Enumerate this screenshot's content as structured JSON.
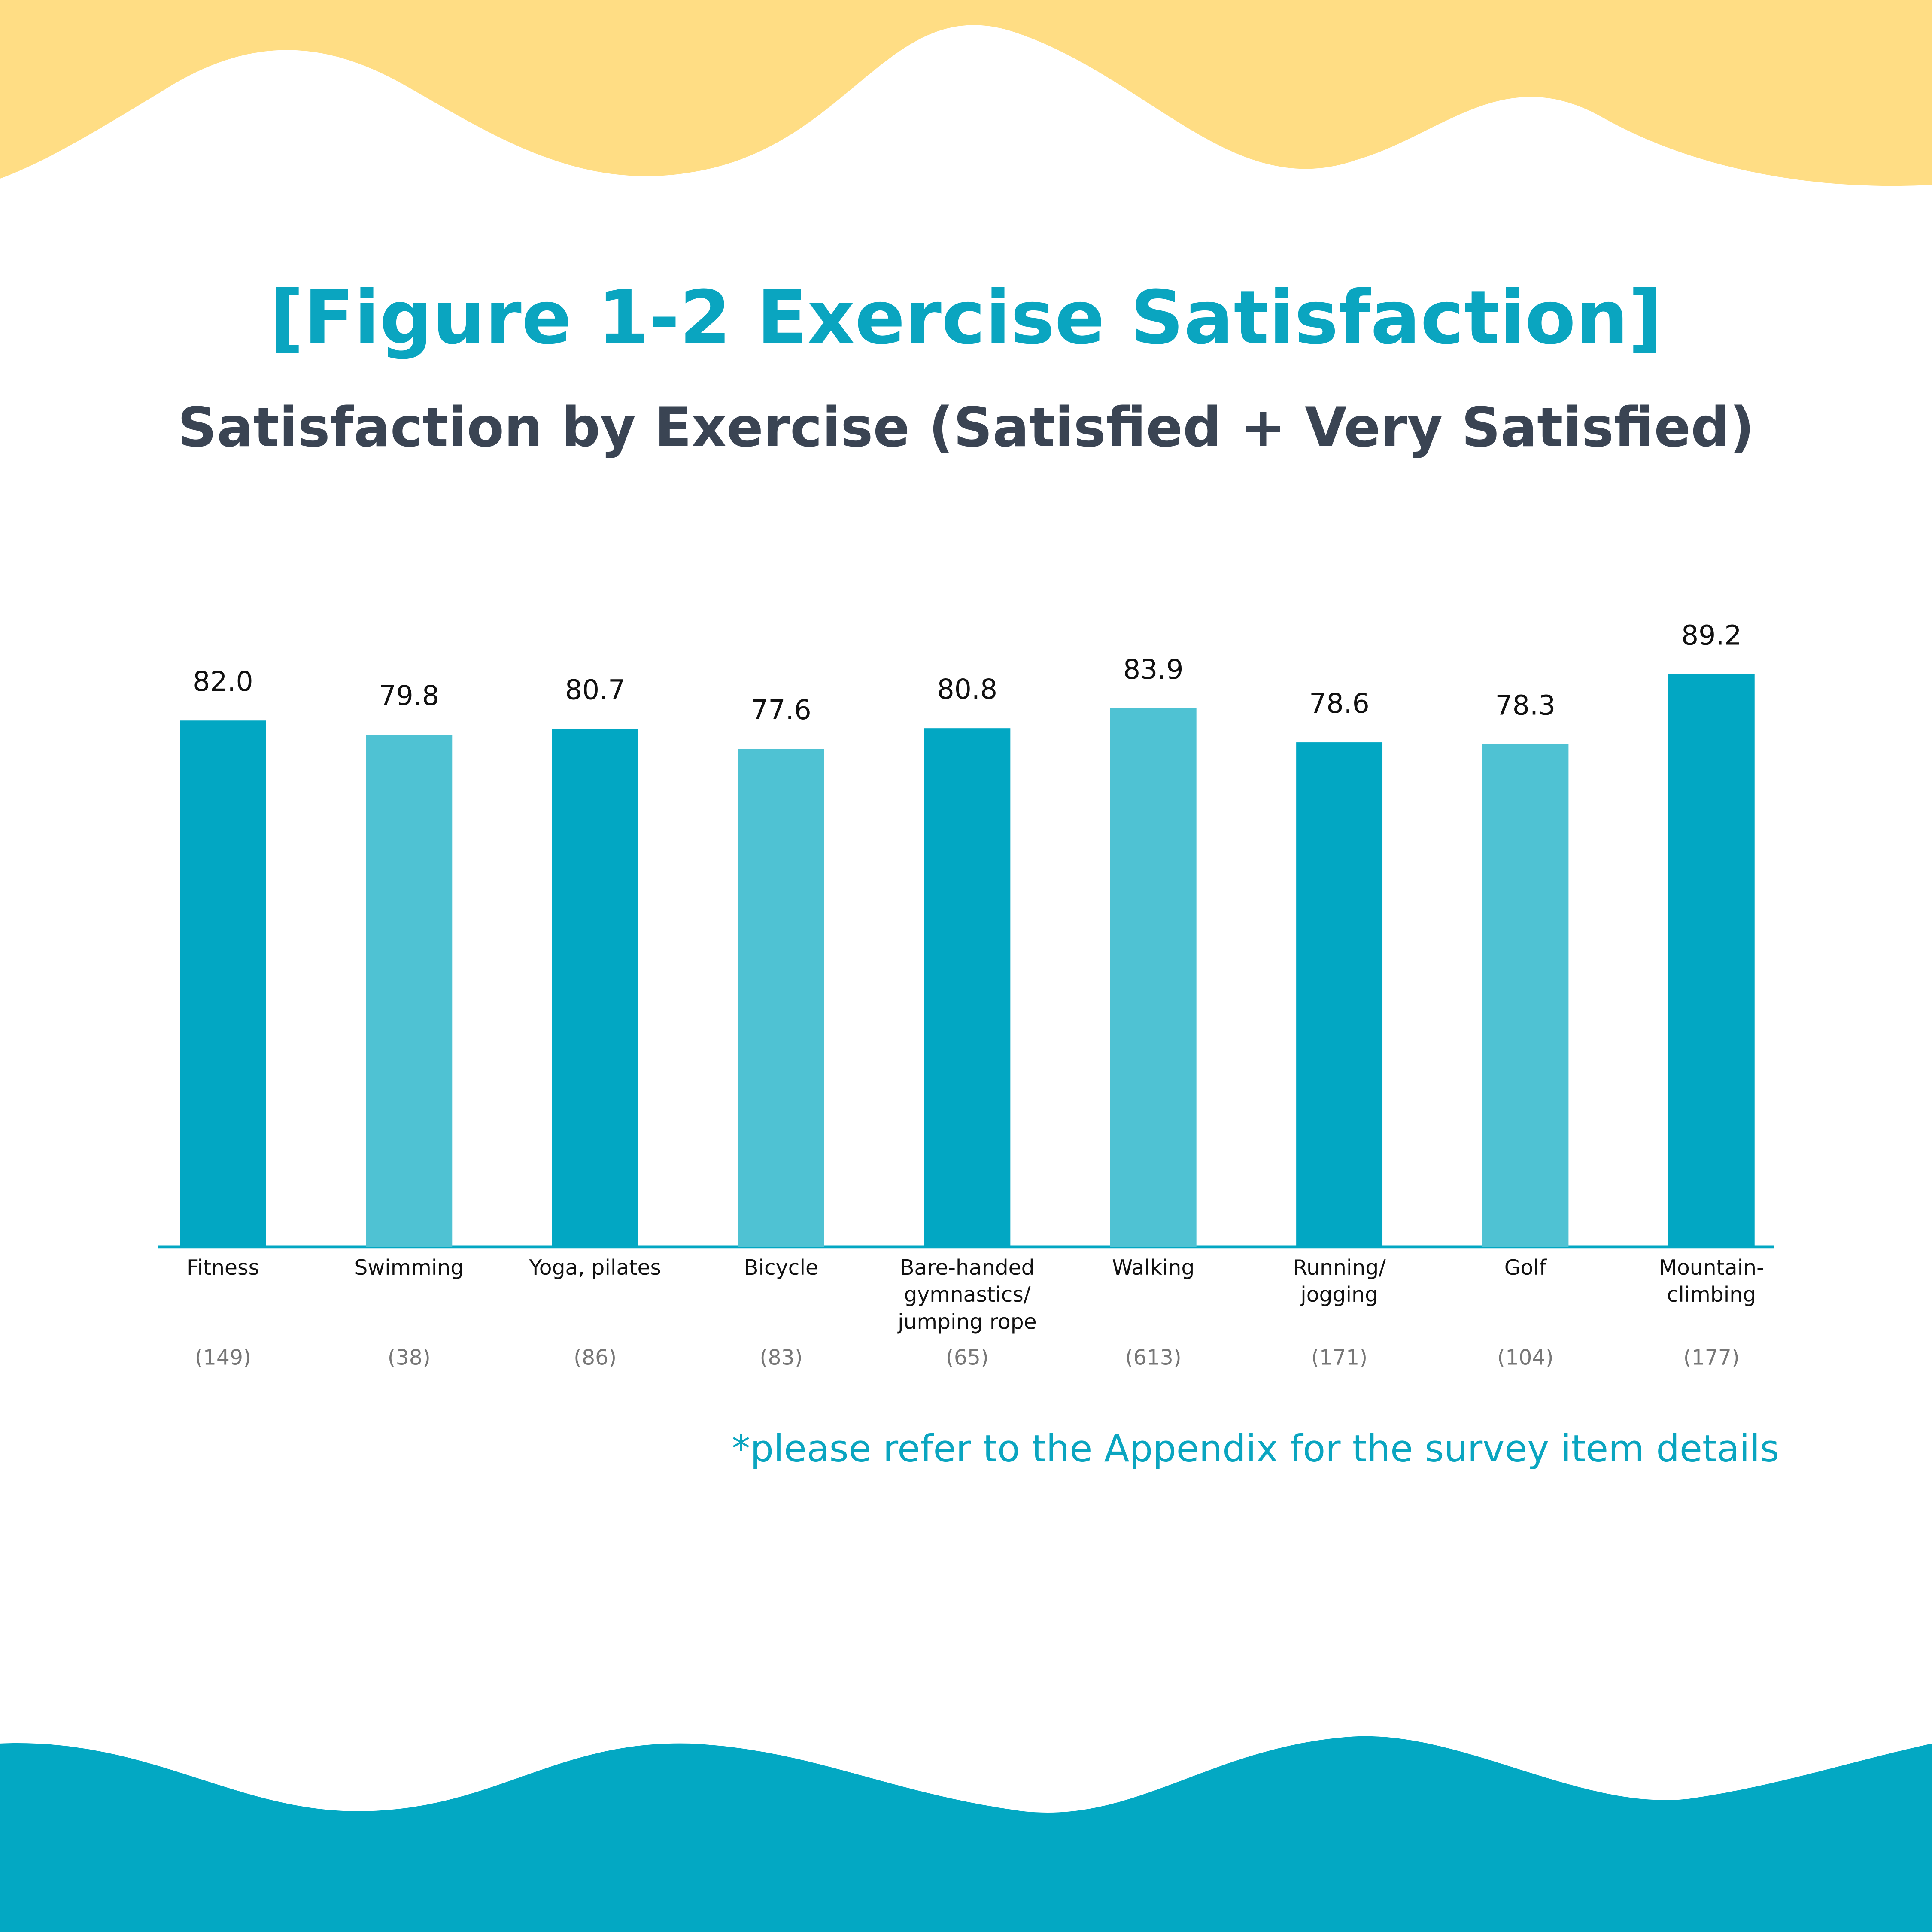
{
  "chart_data": {
    "type": "bar",
    "title": "[Figure 1-2 Exercise Satisfaction]",
    "subtitle": "Satisfaction by Exercise (Satisfied + Very Satisfied)",
    "categories": [
      "Fitness",
      "Swimming",
      "Yoga, pilates",
      "Bicycle",
      "Bare-handed\ngymnastics/\njumping rope",
      "Walking",
      "Running/\njogging",
      "Golf",
      "Mountain-\nclimbing"
    ],
    "values": [
      82.0,
      79.8,
      80.7,
      77.6,
      80.8,
      83.9,
      78.6,
      78.3,
      89.2
    ],
    "value_labels": [
      "82.0",
      "79.8",
      "80.7",
      "77.6",
      "80.8",
      "83.9",
      "78.6",
      "78.3",
      "89.2"
    ],
    "sample_sizes": [
      "(149)",
      "(38)",
      "(86)",
      "(83)",
      "(65)",
      "(613)",
      "(171)",
      "(104)",
      "(177)"
    ],
    "colors": [
      "#02a7c3",
      "#4fc2d3",
      "#02a7c3",
      "#4fc2d3",
      "#02a7c3",
      "#4fc2d3",
      "#02a7c3",
      "#4fc2d3",
      "#02a7c3"
    ],
    "footnote": "*please refer to the Appendix for the survey item details"
  }
}
